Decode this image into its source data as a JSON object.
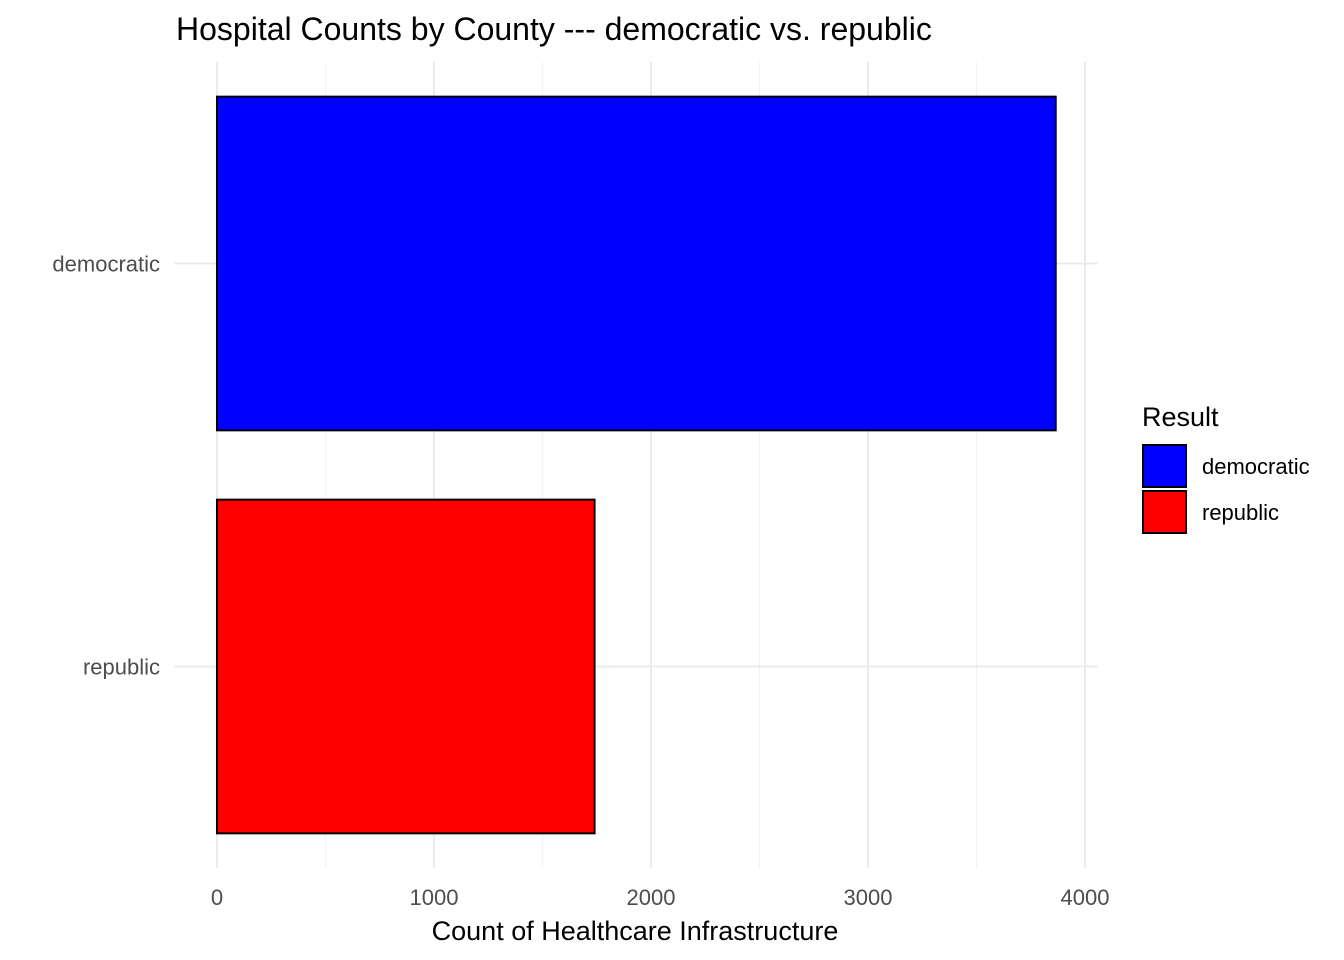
{
  "chart_data": {
    "type": "bar",
    "orientation": "horizontal",
    "title": "Hospital Counts by County --- democratic vs. republic",
    "xlabel": "Count of Healthcare Infrastructure",
    "ylabel": "",
    "categories": [
      "democratic",
      "republic"
    ],
    "values": [
      3865,
      1740
    ],
    "xlim": [
      0,
      4000
    ],
    "x_ticks": [
      0,
      1000,
      2000,
      3000,
      4000
    ],
    "x_tick_labels": [
      "0",
      "1000",
      "2000",
      "3000",
      "4000"
    ],
    "colors": [
      "#0000ff",
      "#ff0000"
    ],
    "grid": true,
    "legend": {
      "title": "Result",
      "placement": "right",
      "entries": [
        "democratic",
        "republic"
      ]
    }
  }
}
